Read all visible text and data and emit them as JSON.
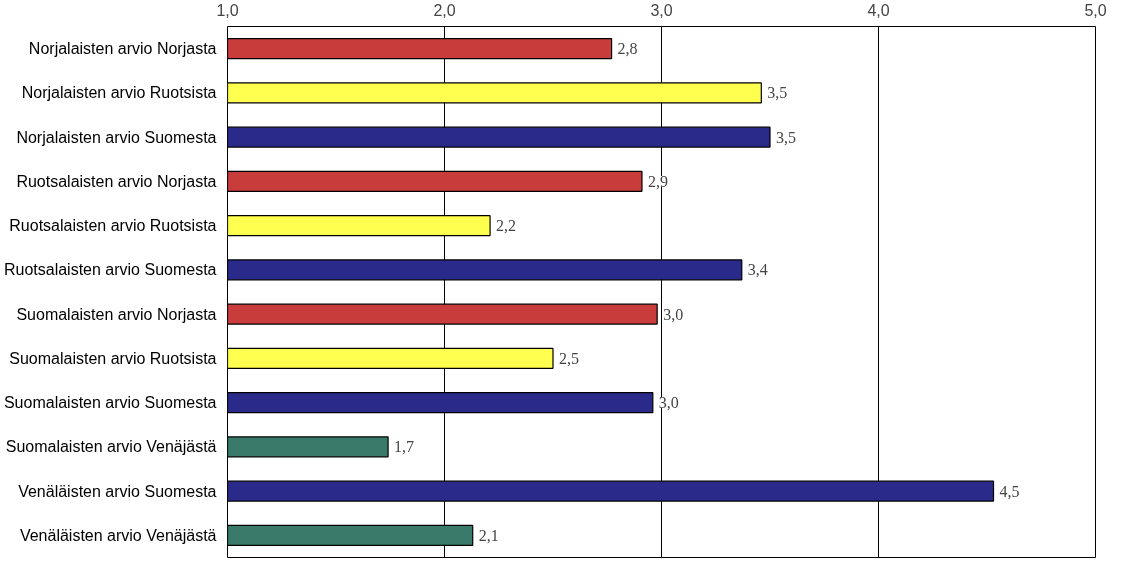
{
  "chart_data": {
    "type": "bar",
    "orientation": "horizontal",
    "categories": [
      "Norjalaisten arvio Norjasta",
      "Norjalaisten arvio Ruotsista",
      "Norjalaisten arvio Suomesta",
      "Ruotsalaisten arvio Norjasta",
      "Ruotsalaisten arvio Ruotsista",
      "Ruotsalaisten arvio Suomesta",
      "Suomalaisten arvio Norjasta",
      "Suomalaisten arvio Ruotsista",
      "Suomalaisten arvio Suomesta",
      "Suomalaisten arvio Venäjästä",
      "Venäläisten arvio Suomesta",
      "Venäläisten arvio Venäjästä"
    ],
    "values": [
      2.77,
      3.46,
      3.5,
      2.91,
      2.21,
      3.37,
      2.98,
      2.5,
      2.96,
      1.74,
      4.53,
      2.13
    ],
    "value_labels": [
      "2,8",
      "3,5",
      "3,5",
      "2,9",
      "2,2",
      "3,4",
      "3,0",
      "2,5",
      "3,0",
      "1,7",
      "4,5",
      "2,1"
    ],
    "colors": [
      "#c83c3c",
      "#ffff50",
      "#2a2a8a",
      "#c83c3c",
      "#ffff50",
      "#2a2a8a",
      "#c83c3c",
      "#ffff50",
      "#2a2a8a",
      "#3a7a6a",
      "#2a2a8a",
      "#3a7a6a"
    ],
    "xlim": [
      1.0,
      5.0
    ],
    "xticks": [
      {
        "value": 1.0,
        "label": "1,0"
      },
      {
        "value": 2.0,
        "label": "2,0"
      },
      {
        "value": 3.0,
        "label": "3,0"
      },
      {
        "value": 4.0,
        "label": "4,0"
      },
      {
        "value": 5.0,
        "label": "5,0"
      }
    ],
    "grid": "x"
  }
}
